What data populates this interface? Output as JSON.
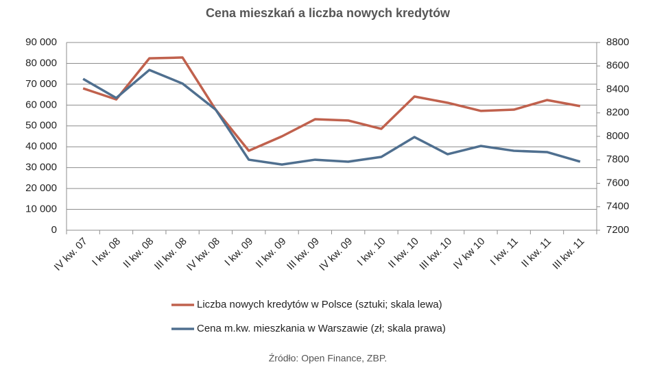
{
  "chart_data": {
    "type": "line",
    "title": "Cena mieszkań a liczba nowych kredytów",
    "categories": [
      "IV kw. 07",
      "I kw. 08",
      "II kw. 08",
      "III kw. 08",
      "IV kw. 08",
      "I kw. 09",
      "II kw. 09",
      "III kw. 09",
      "IV kw. 09",
      "I kw. 10",
      "II kw. 10",
      "III kw. 10",
      "IV kw 10",
      "I kw. 11",
      "II kw. 11",
      "III kw. 11"
    ],
    "series": [
      {
        "name": "Liczba nowych kredytów w Polsce (sztuki; skala lewa)",
        "color": "#c0614d",
        "values": [
          68000,
          62700,
          82400,
          82800,
          57800,
          38100,
          45000,
          53200,
          52600,
          48600,
          64100,
          61100,
          57200,
          57800,
          62400,
          59500
        ]
      },
      {
        "name": "Cena m.kw. mieszkania w Warszawie (zł; skala prawa)",
        "color": "#4f6f8f",
        "axis": "y2",
        "values": [
          8490,
          8327,
          8566,
          8450,
          8228,
          7801,
          7760,
          7801,
          7784,
          7825,
          7994,
          7848,
          7918,
          7877,
          7866,
          7784
        ]
      }
    ],
    "ylim": [
      0,
      90000
    ],
    "yticks": [
      0,
      {
        "value": 10000,
        "label": "10 000"
      },
      {
        "value": 20000,
        "label": "20 000"
      },
      {
        "value": 30000,
        "label": "30 000"
      },
      {
        "value": 40000,
        "label": "40 000"
      },
      {
        "value": 50000,
        "label": "50 000"
      },
      {
        "value": 60000,
        "label": "60 000"
      },
      {
        "value": 70000,
        "label": "70 000"
      },
      {
        "value": 80000,
        "label": "80 000"
      },
      {
        "value": 90000,
        "label": "90 000"
      }
    ],
    "y2lim": [
      7200,
      8800
    ],
    "y2ticks": [
      7200,
      7400,
      7600,
      7800,
      8000,
      8200,
      8400,
      8600,
      8800
    ],
    "grid": true,
    "source": "Źródło: Open Finance, ZBP."
  }
}
